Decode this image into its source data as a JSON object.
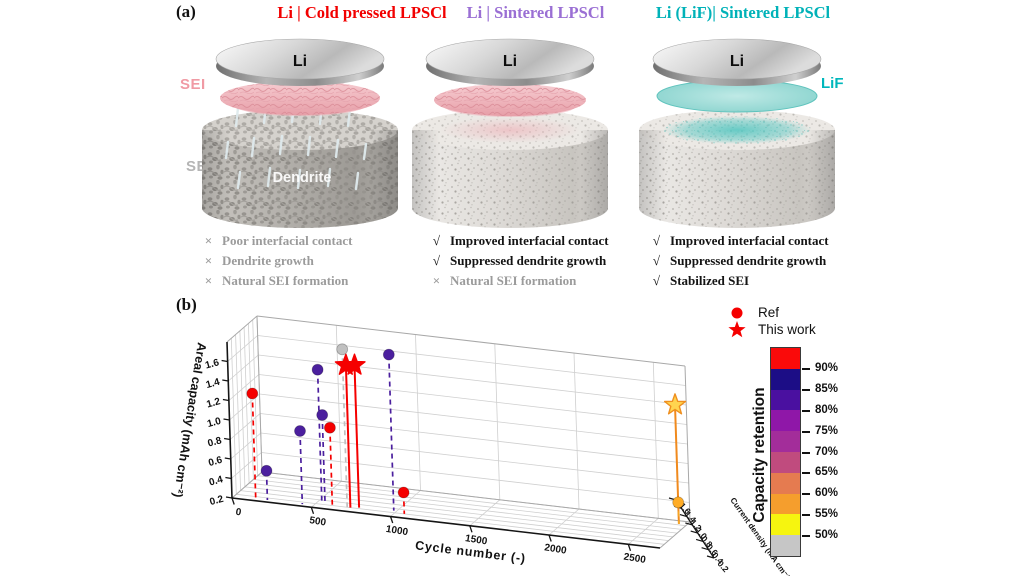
{
  "page": {
    "background": "#ffffff"
  },
  "panel_a": {
    "label": "(a)",
    "side_labels": {
      "sei": "SEI",
      "se": "SE"
    },
    "marks": {
      "pass": "√",
      "fail": "×"
    },
    "cells": [
      {
        "title": "Li | Cold pressed LPSCl",
        "title_color": "#f20000",
        "disc_label": "Li",
        "inner_label": "Dendrite",
        "checks": [
          {
            "ok": false,
            "text": "Poor interfacial contact"
          },
          {
            "ok": false,
            "text": "Dendrite growth"
          },
          {
            "ok": false,
            "text": "Natural SEI formation"
          }
        ]
      },
      {
        "title": "Li | Sintered LPSCl",
        "title_color": "#9a6fd4",
        "disc_label": "Li",
        "checks": [
          {
            "ok": true,
            "text": "Improved interfacial contact"
          },
          {
            "ok": true,
            "text": "Suppressed dendrite growth"
          },
          {
            "ok": false,
            "text": "Natural SEI formation"
          }
        ]
      },
      {
        "title": "Li (LiF)| Sintered LPSCl",
        "title_color": "#00b2b8",
        "disc_label": "Li",
        "interlayer_label": "LiF",
        "checks": [
          {
            "ok": true,
            "text": "Improved interfacial contact"
          },
          {
            "ok": true,
            "text": "Suppressed dendrite growth"
          },
          {
            "ok": true,
            "text": "Stabilized SEI"
          }
        ]
      }
    ]
  },
  "panel_b": {
    "label": "(b)",
    "legend": [
      {
        "marker": "circle",
        "color": "#f50000",
        "label": "Ref"
      },
      {
        "marker": "star",
        "color": "#f50000",
        "label": "This work"
      }
    ],
    "colorbar": {
      "title": "Capacity retention",
      "segment_colors_top_to_bottom": [
        "#fa0a0a",
        "#1c0d86",
        "#4a10a0",
        "#8f17a8",
        "#a32d9a",
        "#c04b7e",
        "#e57b50",
        "#f59e2d",
        "#f6f50f",
        "#c6c6c6"
      ],
      "tick_labels": [
        "90%",
        "85%",
        "80%",
        "75%",
        "70%",
        "65%",
        "60%",
        "55%",
        "50%"
      ]
    }
  },
  "chart_data": {
    "type": "scatter3d",
    "xlabel": "Cycle number (-)",
    "ylabel": "Areal capacity (mAh cm⁻²)",
    "zlabel": "Current density (mA cm⁻²)",
    "x_ticks": [
      0,
      500,
      1000,
      1500,
      2000,
      2500
    ],
    "y_ticks": [
      0.2,
      0.4,
      0.6,
      0.8,
      1.0,
      1.2,
      1.4,
      1.6
    ],
    "z_ticks": [
      0.2,
      0.4,
      0.6,
      0.8,
      1.0,
      1.2,
      1.4,
      1.6
    ],
    "xlim": [
      0,
      2700
    ],
    "ylim": [
      0.2,
      1.8
    ],
    "zlim": [
      0.2,
      1.6
    ],
    "grid": true,
    "points": [
      {
        "cycle": 150,
        "areal_capacity": 1.3,
        "current_density": 0.2,
        "color": "#f50000",
        "marker": "circle",
        "stem": "dashed",
        "group": "ref"
      },
      {
        "cycle": 210,
        "areal_capacity": 0.5,
        "current_density": 0.3,
        "color": "#4b1f9e",
        "marker": "circle",
        "stem": "dashed",
        "group": "ref"
      },
      {
        "cycle": 430,
        "areal_capacity": 0.95,
        "current_density": 0.3,
        "color": "#4b1f9e",
        "marker": "circle",
        "stem": "dashed",
        "group": "ref"
      },
      {
        "cycle": 540,
        "areal_capacity": 1.58,
        "current_density": 0.4,
        "color": "#4b1f9e",
        "marker": "circle",
        "stem": "dashed",
        "group": "ref"
      },
      {
        "cycle": 560,
        "areal_capacity": 1.12,
        "current_density": 0.4,
        "color": "#4b1f9e",
        "marker": "circle",
        "stem": "dashed",
        "group": "ref"
      },
      {
        "cycle": 620,
        "areal_capacity": 1.02,
        "current_density": 0.3,
        "color": "#f50000",
        "marker": "circle",
        "stem": "dashed",
        "group": "ref"
      },
      {
        "cycle": 700,
        "areal_capacity": 1.82,
        "current_density": 0.4,
        "color": "#c0c0c0",
        "marker": "circle",
        "stem": "dashed",
        "group": "ref"
      },
      {
        "cycle": 720,
        "areal_capacity": 1.66,
        "current_density": 0.4,
        "color": "#f50000",
        "marker": "star",
        "stem": "solid",
        "group": "this_work"
      },
      {
        "cycle": 768,
        "areal_capacity": 1.66,
        "current_density": 0.45,
        "color": "#f50000",
        "marker": "star",
        "stem": "solid",
        "group": "this_work"
      },
      {
        "cycle": 980,
        "areal_capacity": 1.8,
        "current_density": 0.5,
        "color": "#4b1f9e",
        "marker": "circle",
        "stem": "dashed",
        "group": "ref"
      },
      {
        "cycle": 1060,
        "areal_capacity": 0.42,
        "current_density": 0.4,
        "color": "#f50000",
        "marker": "circle",
        "stem": "dashed",
        "group": "ref"
      },
      {
        "cycle": 2650,
        "areal_capacity": 1.42,
        "current_density": 1.45,
        "color": "#ffd54f",
        "stroke": "#ef8f1f",
        "marker": "star",
        "stem": "solid",
        "stem_color": "#f08a1e",
        "group": "this_work"
      },
      {
        "cycle": 2650,
        "areal_capacity": 0.42,
        "current_density": 1.45,
        "color": "#ffac26",
        "marker": "circle",
        "stem": "dashed",
        "stem_color": "#f5a623",
        "group": "ref"
      }
    ]
  }
}
